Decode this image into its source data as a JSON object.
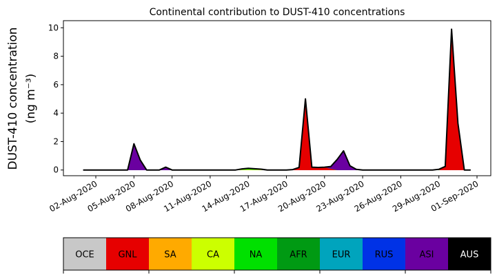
{
  "chart_data": {
    "type": "area",
    "stacked": true,
    "title": "Continental contribution to DUST-410 concentrations",
    "ylabel_line1": "DUST-410 concentration",
    "ylabel_line2": "(ng m⁻³)",
    "xlabel": "",
    "ylim": [
      -0.4,
      10.5
    ],
    "yticks": [
      0,
      2,
      4,
      6,
      8,
      10
    ],
    "xticks": [
      "02-Aug-2020",
      "05-Aug-2020",
      "08-Aug-2020",
      "11-Aug-2020",
      "14-Aug-2020",
      "17-Aug-2020",
      "20-Aug-2020",
      "23-Aug-2020",
      "26-Aug-2020",
      "29-Aug-2020",
      "01-Sep-2020"
    ],
    "grid": false,
    "total_line_color": "#000000",
    "x": [
      "2020-08-01T00",
      "2020-08-01T12",
      "2020-08-02T00",
      "2020-08-02T12",
      "2020-08-03T00",
      "2020-08-03T12",
      "2020-08-04T00",
      "2020-08-04T12",
      "2020-08-05T00",
      "2020-08-05T12",
      "2020-08-06T00",
      "2020-08-06T12",
      "2020-08-07T00",
      "2020-08-07T12",
      "2020-08-08T00",
      "2020-08-08T12",
      "2020-08-09T00",
      "2020-08-09T12",
      "2020-08-10T00",
      "2020-08-10T12",
      "2020-08-11T00",
      "2020-08-11T12",
      "2020-08-12T00",
      "2020-08-12T12",
      "2020-08-13T00",
      "2020-08-13T12",
      "2020-08-14T00",
      "2020-08-14T12",
      "2020-08-15T00",
      "2020-08-15T12",
      "2020-08-16T00",
      "2020-08-16T12",
      "2020-08-17T00",
      "2020-08-17T12",
      "2020-08-18T00",
      "2020-08-18T12",
      "2020-08-19T00",
      "2020-08-19T12",
      "2020-08-20T00",
      "2020-08-20T12",
      "2020-08-21T00",
      "2020-08-21T12",
      "2020-08-22T00",
      "2020-08-22T12",
      "2020-08-23T00",
      "2020-08-23T12",
      "2020-08-24T00",
      "2020-08-24T12",
      "2020-08-25T00",
      "2020-08-25T12",
      "2020-08-26T00",
      "2020-08-26T12",
      "2020-08-27T00",
      "2020-08-27T12",
      "2020-08-28T00",
      "2020-08-28T12",
      "2020-08-29T00",
      "2020-08-29T12",
      "2020-08-30T00",
      "2020-08-30T12",
      "2020-08-31T00",
      "2020-08-31T12"
    ],
    "series": [
      {
        "name": "GNL",
        "color": "#e60000",
        "values": [
          0,
          0,
          0,
          0,
          0,
          0,
          0,
          0,
          0,
          0,
          0,
          0,
          0,
          0,
          0,
          0,
          0,
          0,
          0,
          0,
          0,
          0,
          0,
          0,
          0,
          0,
          0,
          0,
          0,
          0,
          0,
          0,
          0,
          0,
          0.15,
          5.0,
          0.2,
          0.18,
          0.2,
          0.1,
          0,
          0,
          0,
          0,
          0,
          0,
          0,
          0,
          0,
          0,
          0,
          0,
          0,
          0,
          0,
          0,
          0,
          0.25,
          9.9,
          3.3,
          0,
          0
        ]
      },
      {
        "name": "CA",
        "color": "#ccff00",
        "values": [
          0,
          0,
          0,
          0,
          0,
          0,
          0,
          0,
          0,
          0,
          0,
          0,
          0,
          0,
          0,
          0,
          0,
          0,
          0,
          0,
          0,
          0,
          0,
          0,
          0,
          0.03,
          0.04,
          0.03,
          0.04,
          0,
          0,
          0,
          0,
          0.03,
          0.03,
          0,
          0,
          0,
          0,
          0,
          0,
          0,
          0,
          0,
          0,
          0,
          0,
          0,
          0,
          0,
          0,
          0,
          0,
          0,
          0,
          0,
          0,
          0,
          0,
          0,
          0,
          0
        ]
      },
      {
        "name": "NA",
        "color": "#00e000",
        "values": [
          0,
          0,
          0,
          0,
          0,
          0,
          0,
          0,
          0,
          0,
          0,
          0,
          0,
          0,
          0,
          0,
          0,
          0,
          0,
          0,
          0,
          0,
          0,
          0,
          0,
          0.05,
          0.08,
          0.06,
          0.02,
          0,
          0,
          0,
          0,
          0,
          0,
          0,
          0,
          0,
          0,
          0,
          0,
          0,
          0,
          0,
          0,
          0,
          0,
          0,
          0,
          0,
          0,
          0,
          0,
          0,
          0,
          0,
          0.05,
          0,
          0,
          0,
          0,
          0
        ]
      },
      {
        "name": "ASI",
        "color": "#6a00a0",
        "values": [
          0,
          0,
          0,
          0,
          0,
          0,
          0,
          0,
          1.85,
          0.7,
          0,
          0,
          0,
          0.2,
          0,
          0,
          0,
          0,
          0,
          0,
          0,
          0,
          0,
          0,
          0,
          0,
          0,
          0,
          0,
          0,
          0,
          0,
          0,
          0,
          0,
          0,
          0,
          0,
          0,
          0.15,
          0.75,
          1.35,
          0.3,
          0.05,
          0,
          0,
          0,
          0,
          0,
          0,
          0,
          0,
          0,
          0,
          0,
          0,
          0,
          0,
          0,
          0,
          0,
          0
        ]
      }
    ],
    "legend": {
      "placement": "bottom colorbar",
      "entries": [
        {
          "label": "OCE",
          "color": "#c8c8c8"
        },
        {
          "label": "GNL",
          "color": "#e60000"
        },
        {
          "label": "SA",
          "color": "#ffaa00"
        },
        {
          "label": "CA",
          "color": "#ccff00"
        },
        {
          "label": "NA",
          "color": "#00e000"
        },
        {
          "label": "AFR",
          "color": "#009a13"
        },
        {
          "label": "EUR",
          "color": "#00a4bd"
        },
        {
          "label": "RUS",
          "color": "#0032e6"
        },
        {
          "label": "ASI",
          "color": "#6a00a0"
        },
        {
          "label": "AUS",
          "color": "#000000",
          "text_color": "#ffffff"
        }
      ]
    }
  }
}
